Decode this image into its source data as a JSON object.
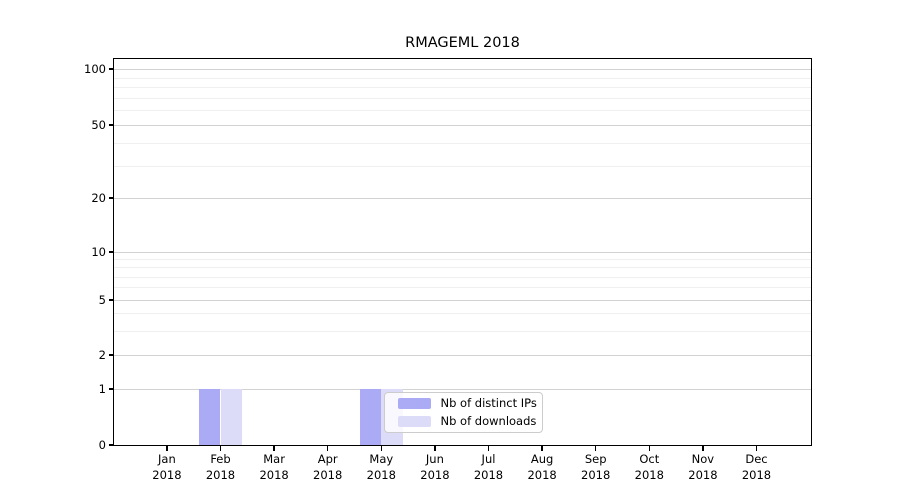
{
  "title": "RMAGEML 2018",
  "chart_data": {
    "type": "bar",
    "title": "RMAGEML 2018",
    "categories": [
      "Jan 2018",
      "Feb 2018",
      "Mar 2018",
      "Apr 2018",
      "May 2018",
      "Jun 2018",
      "Jul 2018",
      "Aug 2018",
      "Sep 2018",
      "Oct 2018",
      "Nov 2018",
      "Dec 2018"
    ],
    "series": [
      {
        "name": "Nb of distinct IPs",
        "color": "#aaaaf5",
        "values": [
          0,
          1,
          0,
          0,
          1,
          0,
          0,
          0,
          0,
          0,
          0,
          0
        ]
      },
      {
        "name": "Nb of downloads",
        "color": "#dcdcf8",
        "values": [
          0,
          1,
          0,
          0,
          1,
          0,
          0,
          0,
          0,
          0,
          0,
          0
        ]
      }
    ],
    "xlabel": "",
    "ylabel": "",
    "y_axis": {
      "scale": "log-like (0 baseline, log above 1)",
      "ticks": [
        0,
        1,
        2,
        5,
        10,
        20,
        50,
        100
      ],
      "minor_ticks": [
        3,
        4,
        6,
        7,
        8,
        9,
        30,
        40,
        60,
        70,
        80,
        90
      ],
      "ylim": [
        0,
        100
      ]
    },
    "grid": {
      "horizontal_major": true,
      "horizontal_minor": true,
      "vertical": false
    },
    "legend_position": "inside, lower center",
    "colors": {
      "background": "#ffffff",
      "major_grid": "#d2d2d2",
      "minor_grid": "#efefef",
      "spine": "#000000",
      "legend_border": "#cccccc"
    }
  }
}
